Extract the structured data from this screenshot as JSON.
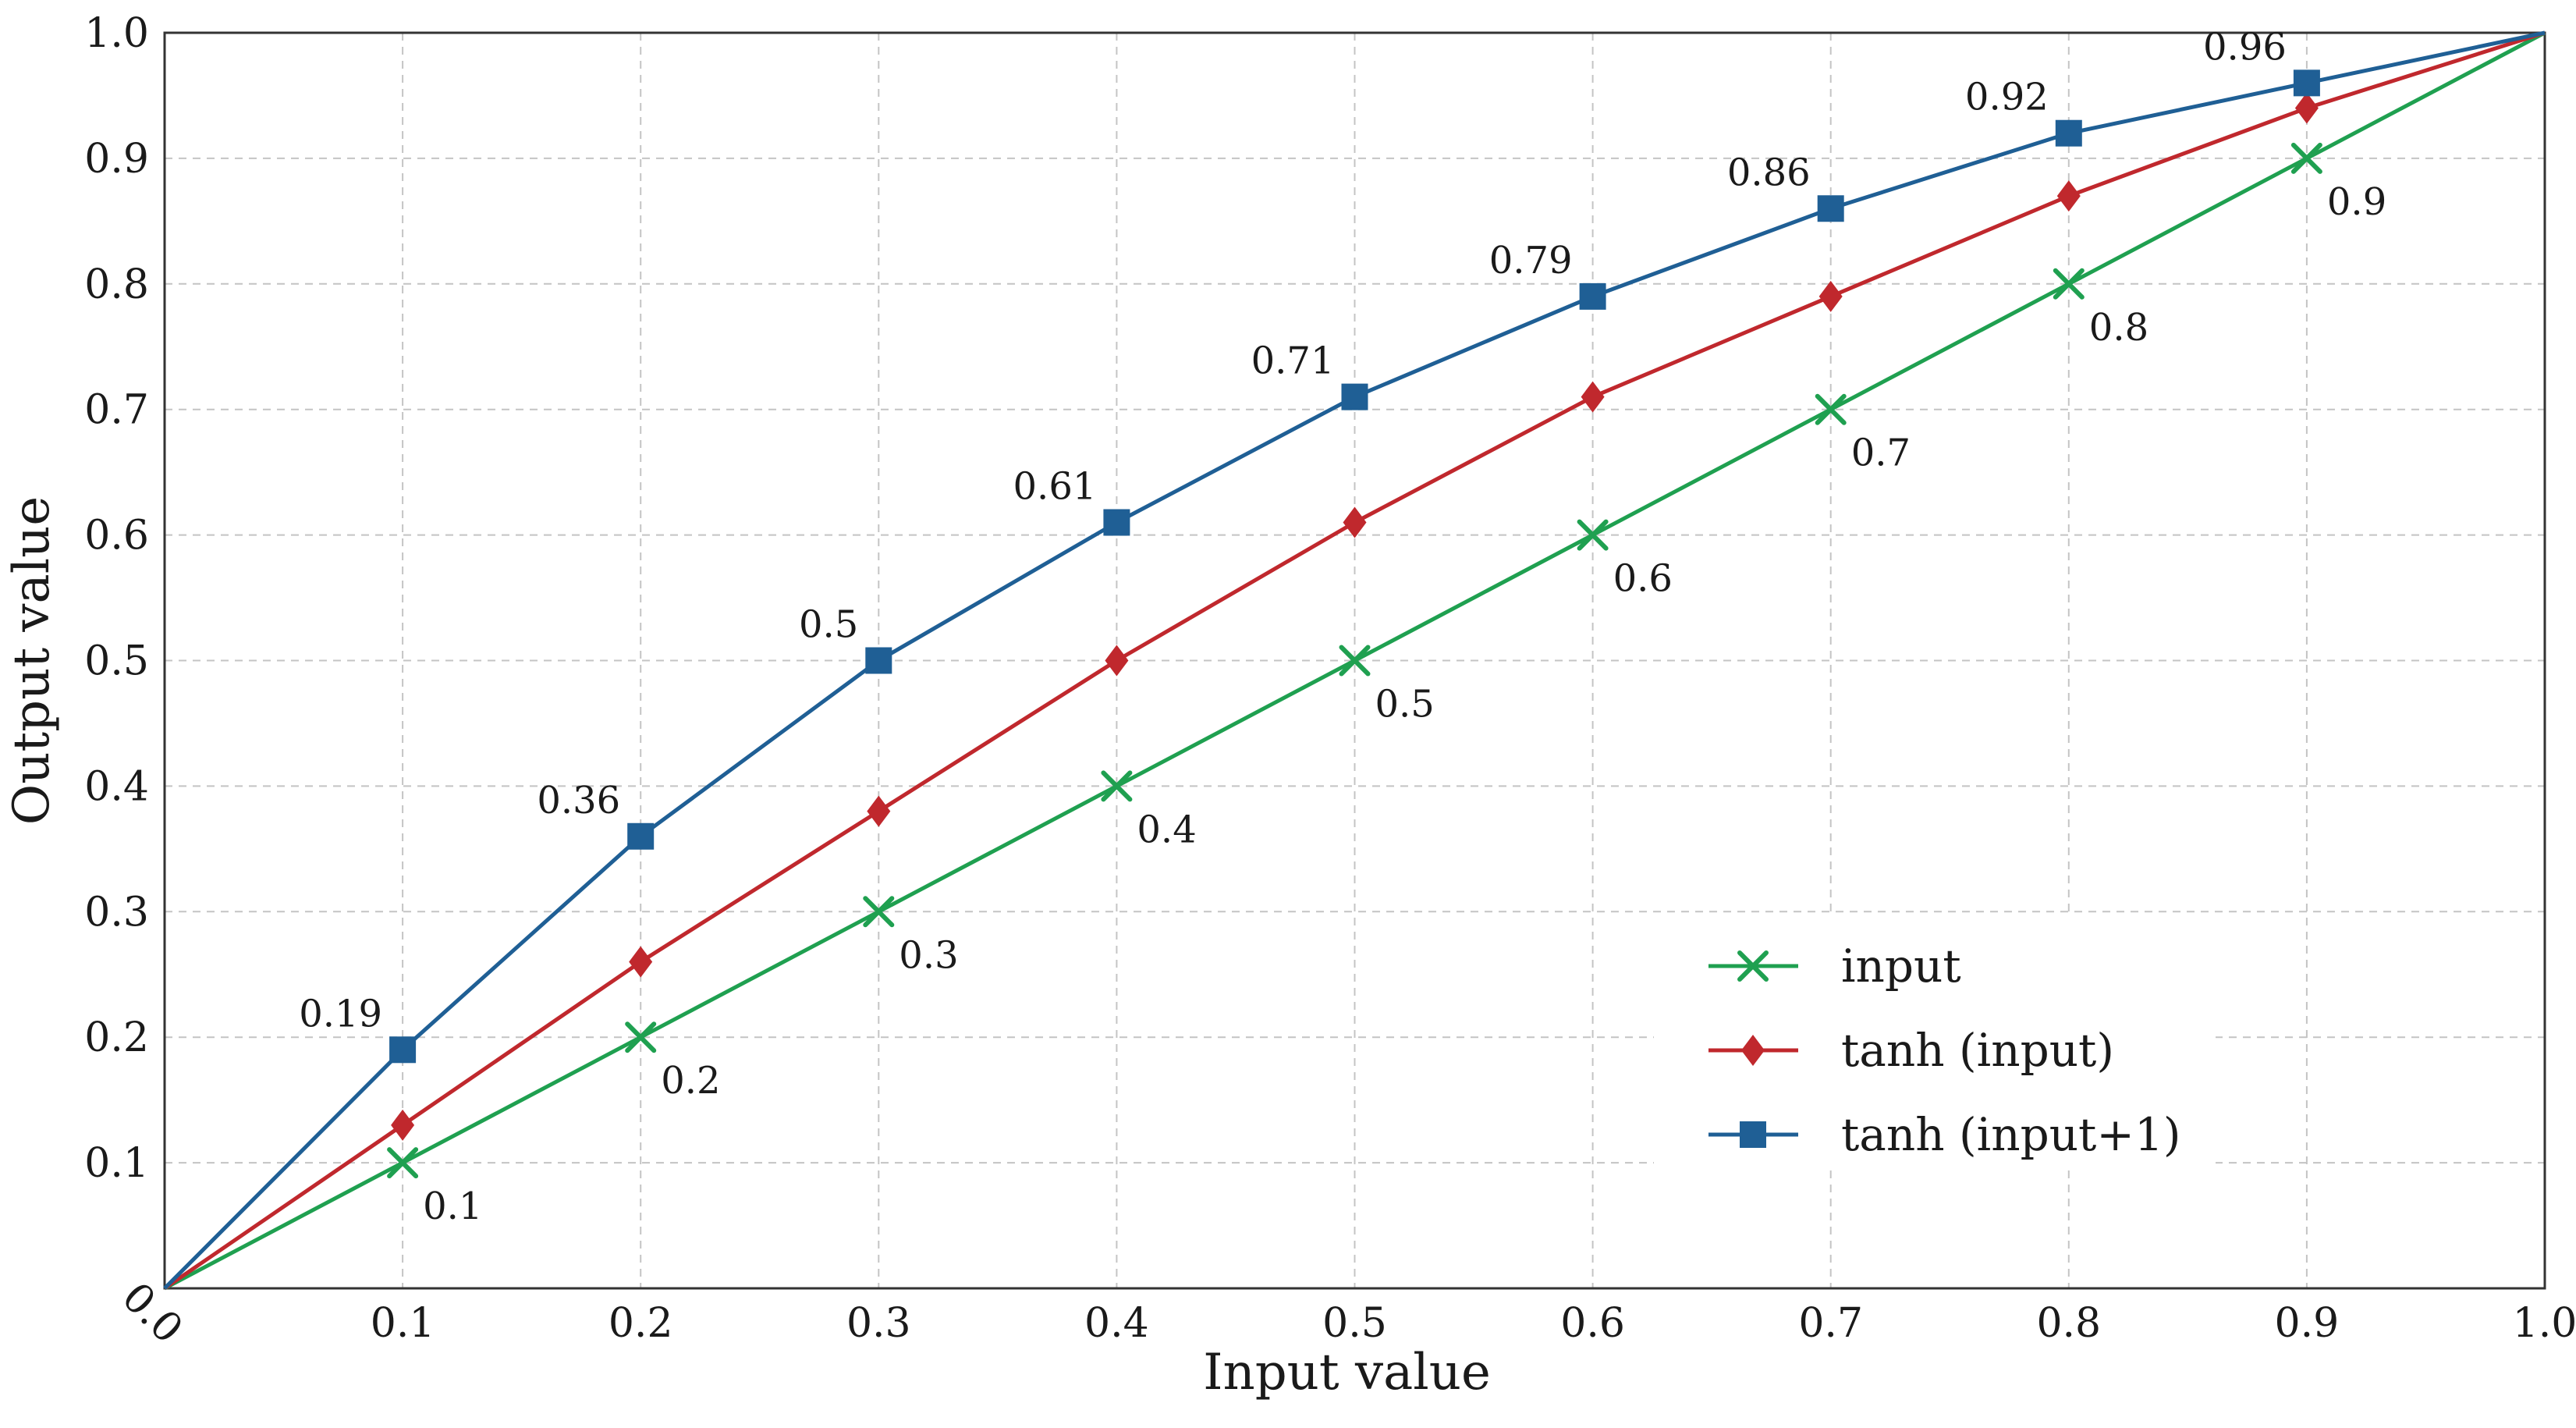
{
  "chart_data": {
    "type": "line",
    "title": "",
    "xlabel": "Input value",
    "ylabel": "Output value",
    "xlim": [
      0.0,
      1.0
    ],
    "ylim": [
      0.0,
      1.0
    ],
    "x_ticks": [
      "0.0",
      "0.1",
      "0.2",
      "0.3",
      "0.4",
      "0.5",
      "0.6",
      "0.7",
      "0.8",
      "0.9",
      "1.0"
    ],
    "y_ticks": [
      "0.0",
      "0.1",
      "0.2",
      "0.3",
      "0.4",
      "0.5",
      "0.6",
      "0.7",
      "0.8",
      "0.9",
      "1.0"
    ],
    "grid": true,
    "legend_position": "bottom-right",
    "series": [
      {
        "name": "input",
        "color": "#1fa050",
        "marker": "x",
        "x": [
          0.0,
          0.1,
          0.2,
          0.3,
          0.4,
          0.5,
          0.6,
          0.7,
          0.8,
          0.9,
          1.0
        ],
        "y": [
          0.0,
          0.1,
          0.2,
          0.3,
          0.4,
          0.5,
          0.6,
          0.7,
          0.8,
          0.9,
          1.0
        ],
        "labels": [
          "0.1",
          "0.2",
          "0.3",
          "0.4",
          "0.5",
          "0.6",
          "0.7",
          "0.8",
          "0.9"
        ]
      },
      {
        "name": "tanh (input)",
        "color": "#c0282d",
        "marker": "diamond",
        "x": [
          0.0,
          0.1,
          0.2,
          0.3,
          0.4,
          0.5,
          0.6,
          0.7,
          0.8,
          0.9,
          1.0
        ],
        "y": [
          0.0,
          0.13,
          0.26,
          0.38,
          0.5,
          0.61,
          0.71,
          0.79,
          0.87,
          0.94,
          1.0
        ],
        "labels": []
      },
      {
        "name": "tanh (input+1)",
        "color": "#1f5f95",
        "marker": "square",
        "x": [
          0.0,
          0.1,
          0.2,
          0.3,
          0.4,
          0.5,
          0.6,
          0.7,
          0.8,
          0.9,
          1.0
        ],
        "y": [
          0.0,
          0.19,
          0.36,
          0.5,
          0.61,
          0.71,
          0.79,
          0.86,
          0.92,
          0.96,
          1.0
        ],
        "labels": [
          "0.19",
          "0.36",
          "0.5",
          "0.61",
          "0.71",
          "0.79",
          "0.86",
          "0.92",
          "0.96"
        ]
      }
    ]
  }
}
